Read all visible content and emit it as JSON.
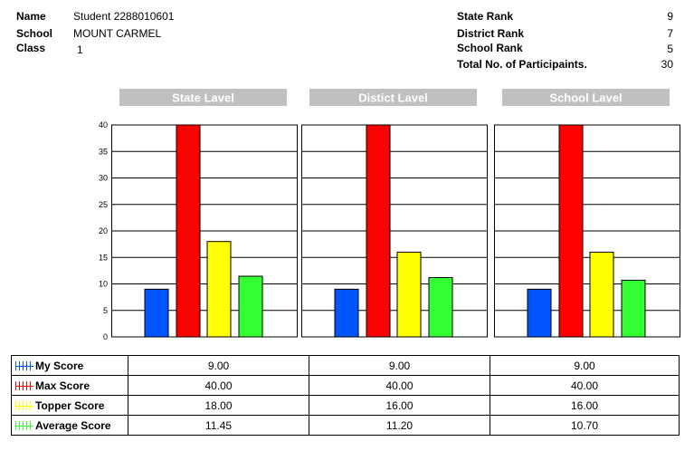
{
  "student_info": {
    "name_label": "Name",
    "name_value": "Student 2288010601",
    "school_label": "School",
    "school_value": "MOUNT CARMEL",
    "class_label": "Class",
    "class_value": "1"
  },
  "ranks": {
    "state_rank_label": "State Rank",
    "state_rank_value": "9",
    "district_rank_label": "District Rank",
    "district_rank_value": "7",
    "school_rank_label": "School Rank",
    "school_rank_value": "5",
    "participants_label": "Total No. of Participaints.",
    "participants_value": "30"
  },
  "colors": {
    "my_score": "#0055ff",
    "max_score": "#ff0000",
    "topper_score": "#ffff00",
    "average_score": "#33ff33",
    "panel_header": "#c0c0c0"
  },
  "chart_data": {
    "type": "bar",
    "panels": [
      "State Lavel",
      "Distict Lavel",
      "School Lavel"
    ],
    "categories": [
      "State Lavel",
      "Distict Lavel",
      "School Lavel"
    ],
    "yticks": [
      "0",
      "5",
      "10",
      "15",
      "20",
      "25",
      "30",
      "35",
      "40"
    ],
    "ylim": [
      0,
      40
    ],
    "series": [
      {
        "name": "My Score",
        "color": "#0055ff",
        "values": [
          9.0,
          9.0,
          9.0
        ]
      },
      {
        "name": "Max Score",
        "color": "#ff0000",
        "values": [
          40.0,
          40.0,
          40.0
        ]
      },
      {
        "name": "Topper Score",
        "color": "#ffff00",
        "values": [
          18.0,
          16.0,
          16.0
        ]
      },
      {
        "name": "Average Score",
        "color": "#33ff33",
        "values": [
          11.45,
          11.2,
          10.7
        ]
      }
    ],
    "grid": true
  },
  "table": {
    "rows": [
      {
        "label": "My Score",
        "values": [
          "9.00",
          "9.00",
          "9.00"
        ]
      },
      {
        "label": "Max Score",
        "values": [
          "40.00",
          "40.00",
          "40.00"
        ]
      },
      {
        "label": "Topper Score",
        "values": [
          "18.00",
          "16.00",
          "16.00"
        ]
      },
      {
        "label": "Average Score",
        "values": [
          "11.45",
          "11.20",
          "10.70"
        ]
      }
    ]
  }
}
